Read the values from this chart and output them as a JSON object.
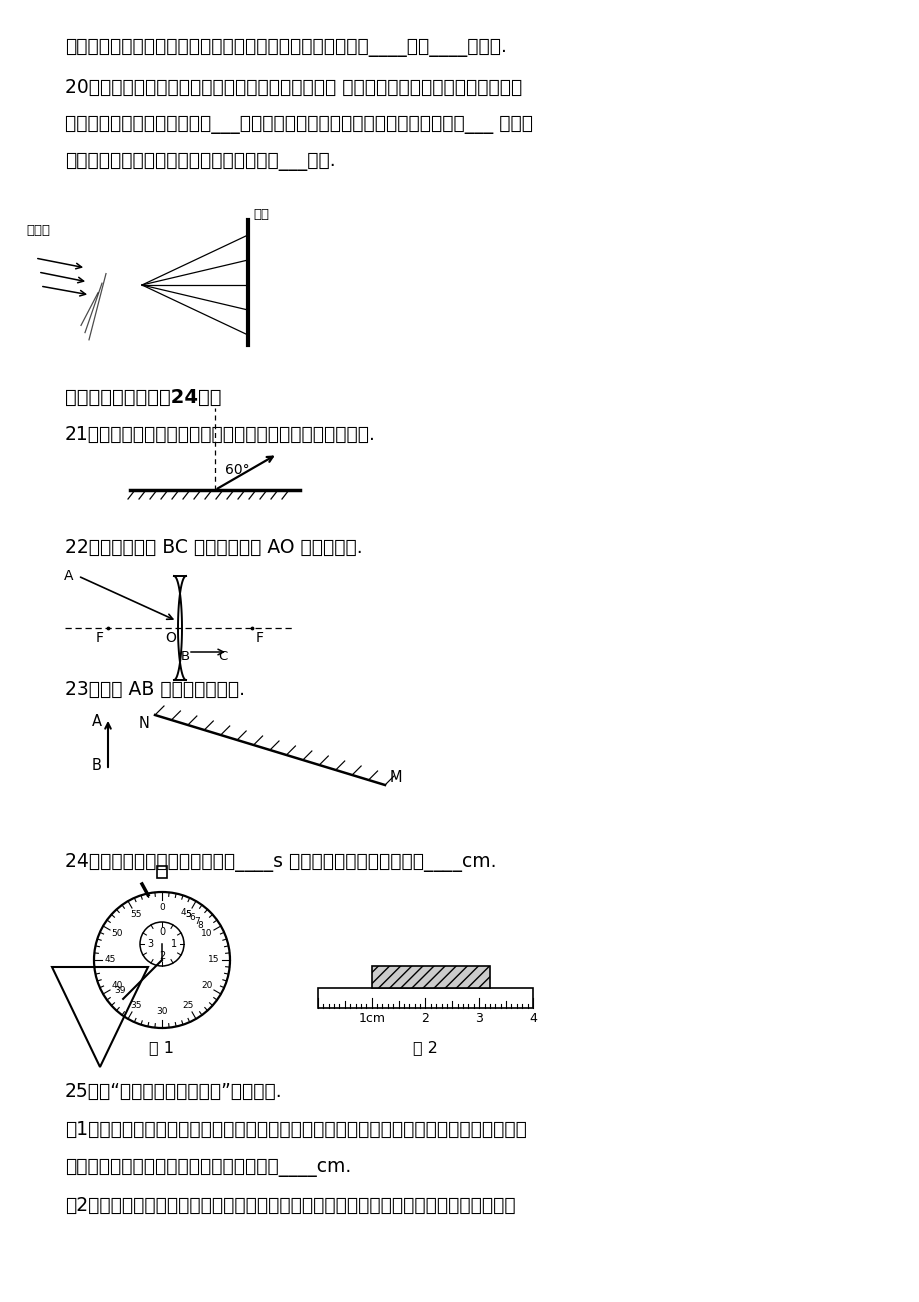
{
  "bg_color": "#ffffff",
  "line1": "时间后，酸奶盒表面会附有一层小水珠，这是空气中的水蒸气____热量____形成的.",
  "line2": "20．如图，一束太阳光通过三棱镜折射后，被分解成 七种颜色的光，在白色光屏上形成一",
  "line3": "条七彩光带，这个现象叫光的___；如果将白色光屏换成黄色纸板，我们能看到___ 色光；",
  "line4": "用于电视遥控器的是一种看不见的光线叫做___外线.",
  "sec3": "三、实验与探究（內24分）",
  "q21": "21．请按照要求画图：在图中，做出入射光线、标出反射角.",
  "q22": "22．画出图中的 BC 的入射光线和 AO 的折射光线.",
  "q23": "23．画出 AB 在平面镜中的像.",
  "q24": "24．如图甲所示，秒表的读数为____s 如图乙所示，物体的长度为____cm.",
  "q25_0": "25．在“探究凸透镜成像规律”的实验中.",
  "q25_1": "（1）如图甲所示，一束平行于凸透镜主光轴的光经过凸透镜后，在光屏上形成了一个最小、",
  "q25_2": "最亮的光斌．由图甲可知，凸透镜的焦距为____cm.",
  "q25_3": "（2）小芳将蜡烛、凸透镜、光屏依次放在光具座上，点燃蜡烛后，实验中出现了如图乙所",
  "fig1": "图 1",
  "fig2": "图 2",
  "taiyangguang": "太阳光",
  "baiping": "白屏"
}
